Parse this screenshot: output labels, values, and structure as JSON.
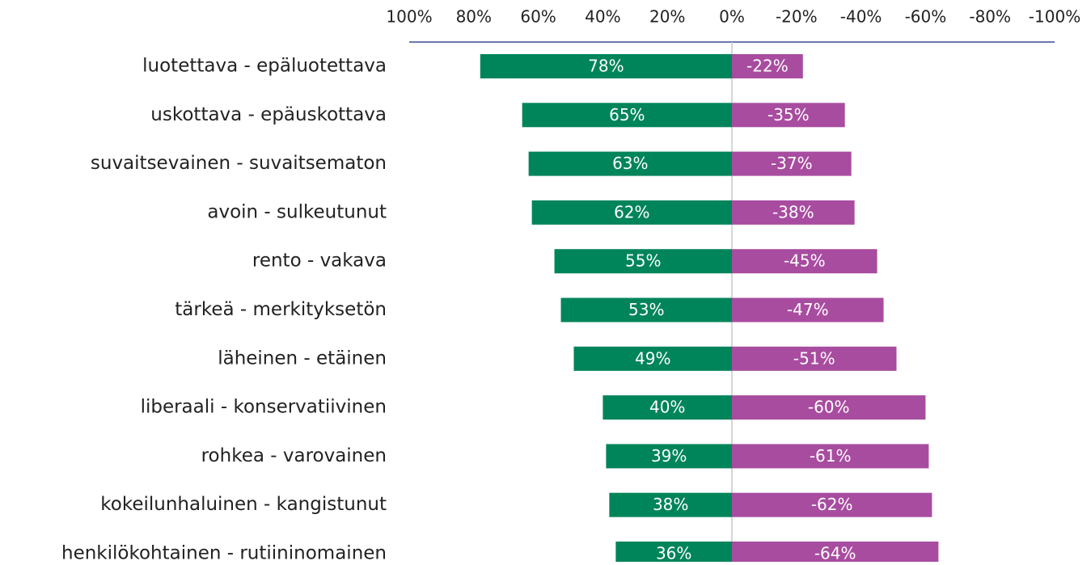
{
  "chart_data": {
    "type": "bar",
    "horizontal": true,
    "categories": [
      "luotettava - epäluotettava",
      "uskottava - epäuskottava",
      "suvaitsevainen - suvaitsematon",
      "avoin - sulkeutunut",
      "rento - vakava",
      "tärkeä - merkityksetön",
      "läheinen - etäinen",
      "liberaali - konservatiivinen",
      "rohkea - varovainen",
      "kokeilunhaluinen - kangistunut",
      "henkilökohtainen - rutiininomainen"
    ],
    "series": [
      {
        "color": "#00845a",
        "values": [
          78,
          65,
          63,
          62,
          55,
          53,
          49,
          40,
          39,
          38,
          36
        ],
        "value_labels": [
          "78%",
          "65%",
          "63%",
          "62%",
          "55%",
          "53%",
          "49%",
          "40%",
          "39%",
          "38%",
          "36%"
        ]
      },
      {
        "color": "#a84ca0",
        "values": [
          -22,
          -35,
          -37,
          -38,
          -45,
          -47,
          -51,
          -60,
          -61,
          -62,
          -64
        ],
        "value_labels": [
          "-22%",
          "-35%",
          "-37%",
          "-38%",
          "-45%",
          "-47%",
          "-51%",
          "-60%",
          "-61%",
          "-62%",
          "-64%"
        ]
      }
    ],
    "xlim": [
      100,
      -100
    ],
    "xticks": [
      {
        "value": 100,
        "label": "100%"
      },
      {
        "value": 80,
        "label": "80%"
      },
      {
        "value": 60,
        "label": "60%"
      },
      {
        "value": 40,
        "label": "40%"
      },
      {
        "value": 20,
        "label": "20%"
      },
      {
        "value": 0,
        "label": "0%"
      },
      {
        "value": -20,
        "label": "-20%"
      },
      {
        "value": -40,
        "label": "-40%"
      },
      {
        "value": -60,
        "label": "-60%"
      },
      {
        "value": -80,
        "label": "-80%"
      },
      {
        "value": -100,
        "label": "-100%"
      }
    ],
    "grid": false
  }
}
